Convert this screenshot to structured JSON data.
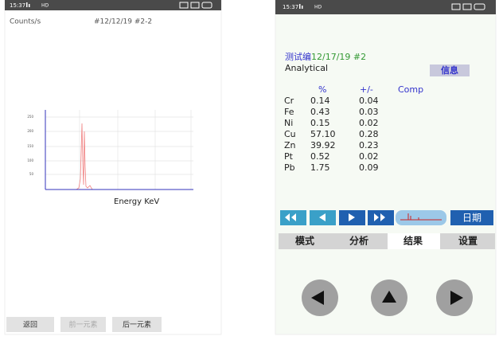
{
  "left": {
    "status_time": "15:37",
    "status_hd": "HD",
    "y_label": "Counts/s",
    "sample": "#12/12/19 #2-2",
    "y_ticks": [
      "250",
      "200",
      "150",
      "100",
      "50"
    ],
    "x_label": "Energy KeV",
    "buttons": [
      "返回",
      "前一元素",
      "后一元素"
    ]
  },
  "right": {
    "status_time": "15:37",
    "status_hd": "HD",
    "test_label": "测试编",
    "test_id": "12/17/19 #2",
    "mode": "Analytical",
    "info_button": "信息",
    "table": {
      "header": [
        "%",
        "+/-",
        "Comp"
      ],
      "rows": [
        [
          "Cr",
          "0.14",
          "0.04"
        ],
        [
          "Fe",
          "0.43",
          "0.03"
        ],
        [
          "Ni",
          "0.15",
          "0.02"
        ],
        [
          "Cu",
          "57.10",
          "0.28"
        ],
        [
          "Zn",
          "39.92",
          "0.23"
        ],
        [
          "Pt",
          "0.52",
          "0.02"
        ],
        [
          "Pb",
          "1.75",
          "0.09"
        ]
      ]
    },
    "date_button": "日期",
    "tabs": [
      "模式",
      "分析",
      "结果",
      "设置"
    ]
  }
}
